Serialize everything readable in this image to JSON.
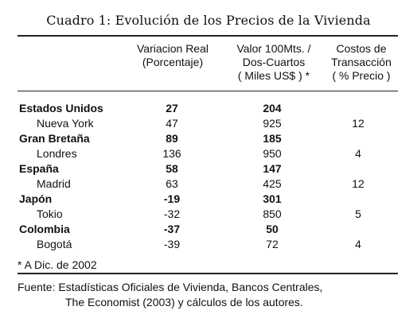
{
  "title": "Cuadro 1: Evolución de los Precios de la Vivienda",
  "headers": {
    "col1": [
      "Variacion Real",
      "(Porcentaje)"
    ],
    "col2": [
      "Valor 100Mts. /",
      "Dos-Cuartos",
      "( Miles US$ ) *"
    ],
    "col3": [
      "Costos de",
      "Transacción",
      "( % Precio )"
    ]
  },
  "rows": [
    {
      "name": "Estados Unidos",
      "c1": "27",
      "c2": "204",
      "c3": ""
    },
    {
      "name": "Nueva York",
      "c1": "47",
      "c2": "925",
      "c3": "12"
    },
    {
      "name": "Gran Bretaña",
      "c1": "89",
      "c2": "185",
      "c3": ""
    },
    {
      "name": "Londres",
      "c1": "136",
      "c2": "950",
      "c3": "4"
    },
    {
      "name": "España",
      "c1": "58",
      "c2": "147",
      "c3": ""
    },
    {
      "name": "Madrid",
      "c1": "63",
      "c2": "425",
      "c3": "12"
    },
    {
      "name": "Japón",
      "c1": "-19",
      "c2": "301",
      "c3": ""
    },
    {
      "name": "Tokio",
      "c1": "-32",
      "c2": "850",
      "c3": "5"
    },
    {
      "name": "Colombia",
      "c1": "-37",
      "c2": "50",
      "c3": ""
    },
    {
      "name": "Bogotá",
      "c1": "-39",
      "c2": "72",
      "c3": "4"
    }
  ],
  "note": "* A Dic. de 2002",
  "source": {
    "line1": "Fuente:  Estadísticas Oficiales de Vivienda, Bancos Centrales,",
    "line2": "The Economist (2003) y cálculos de los autores."
  }
}
